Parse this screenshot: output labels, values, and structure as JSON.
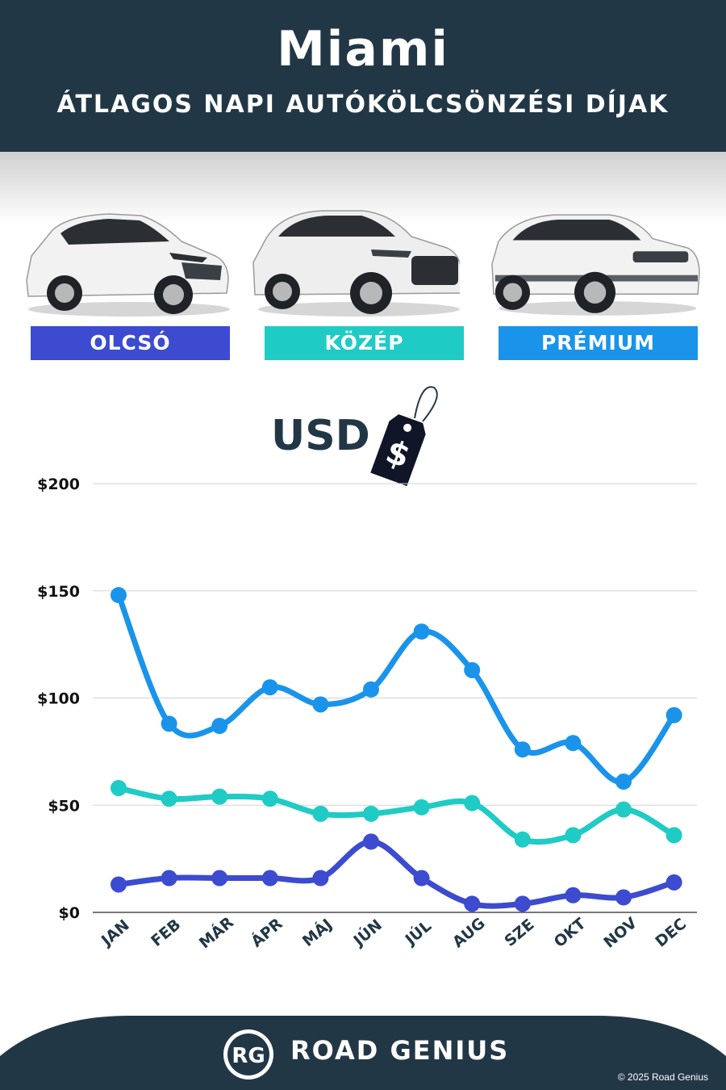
{
  "header": {
    "city": "Miami",
    "subtitle": "ÁTLAGOS NAPI AUTÓKÖLCSÖNZÉSI DÍJAK"
  },
  "categories": [
    {
      "label": "OLCSÓ",
      "color": "#3c4bcf"
    },
    {
      "label": "KÖZÉP",
      "color": "#1fcbc5"
    },
    {
      "label": "PRÉMIUM",
      "color": "#1a94ea"
    }
  ],
  "currency_label": "USD",
  "price_tag_symbol": "$",
  "chart_data": {
    "type": "line",
    "categories": [
      "JAN",
      "FEB",
      "MÁR",
      "ÁPR",
      "MÁJ",
      "JÚN",
      "JÚL",
      "AUG",
      "SZE",
      "OKT",
      "NOV",
      "DEC"
    ],
    "series": [
      {
        "name": "PRÉMIUM",
        "color": "#1a94ea",
        "values": [
          148,
          88,
          87,
          105,
          97,
          104,
          131,
          113,
          76,
          79,
          61,
          92
        ]
      },
      {
        "name": "KÖZÉP",
        "color": "#1fcbc5",
        "values": [
          58,
          53,
          54,
          53,
          46,
          46,
          49,
          51,
          34,
          36,
          48,
          36
        ]
      },
      {
        "name": "OLCSÓ",
        "color": "#3c4bcf",
        "values": [
          13,
          16,
          16,
          16,
          16,
          33,
          16,
          4,
          4,
          8,
          7,
          14
        ]
      }
    ],
    "yticks": [
      "$0",
      "$50",
      "$100",
      "$150",
      "$200"
    ],
    "ylim": [
      0,
      200
    ],
    "grid": true
  },
  "footer": {
    "logo_text": "RG",
    "brand": "ROAD GENIUS",
    "copyright": "© 2025 Road Genius"
  }
}
